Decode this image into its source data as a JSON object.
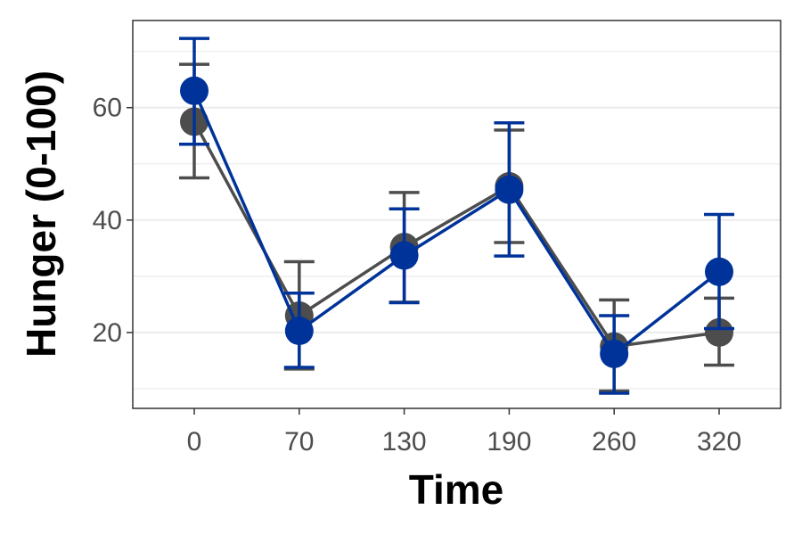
{
  "chart_data": {
    "type": "line",
    "xlabel": "Time",
    "ylabel": "Hunger (0-100)",
    "x": [
      0,
      70,
      130,
      190,
      260,
      320
    ],
    "x_tick_labels": [
      "0",
      "70",
      "130",
      "190",
      "260",
      "320"
    ],
    "ylim": [
      6.5,
      75.5
    ],
    "y_ticks": [
      20,
      40,
      60
    ],
    "y_minor_gridlines": [
      10,
      30,
      50,
      70
    ],
    "grid": true,
    "legend": "none",
    "series": [
      {
        "color": "#4d4d4d",
        "values": [
          57.5,
          23.0,
          35.2,
          46.0,
          17.5,
          20.0
        ],
        "error_low": [
          47.5,
          13.5,
          25.4,
          36.0,
          9.6,
          14.2
        ],
        "error_high": [
          67.7,
          32.6,
          44.9,
          56.0,
          25.8,
          26.1
        ]
      },
      {
        "color": "#003399",
        "values": [
          63.0,
          20.3,
          33.7,
          45.4,
          16.2,
          30.8
        ],
        "error_low": [
          53.5,
          13.8,
          25.3,
          33.6,
          9.2,
          20.7
        ],
        "error_high": [
          72.3,
          27.0,
          42.0,
          57.3,
          23.0,
          41.0
        ]
      }
    ]
  }
}
